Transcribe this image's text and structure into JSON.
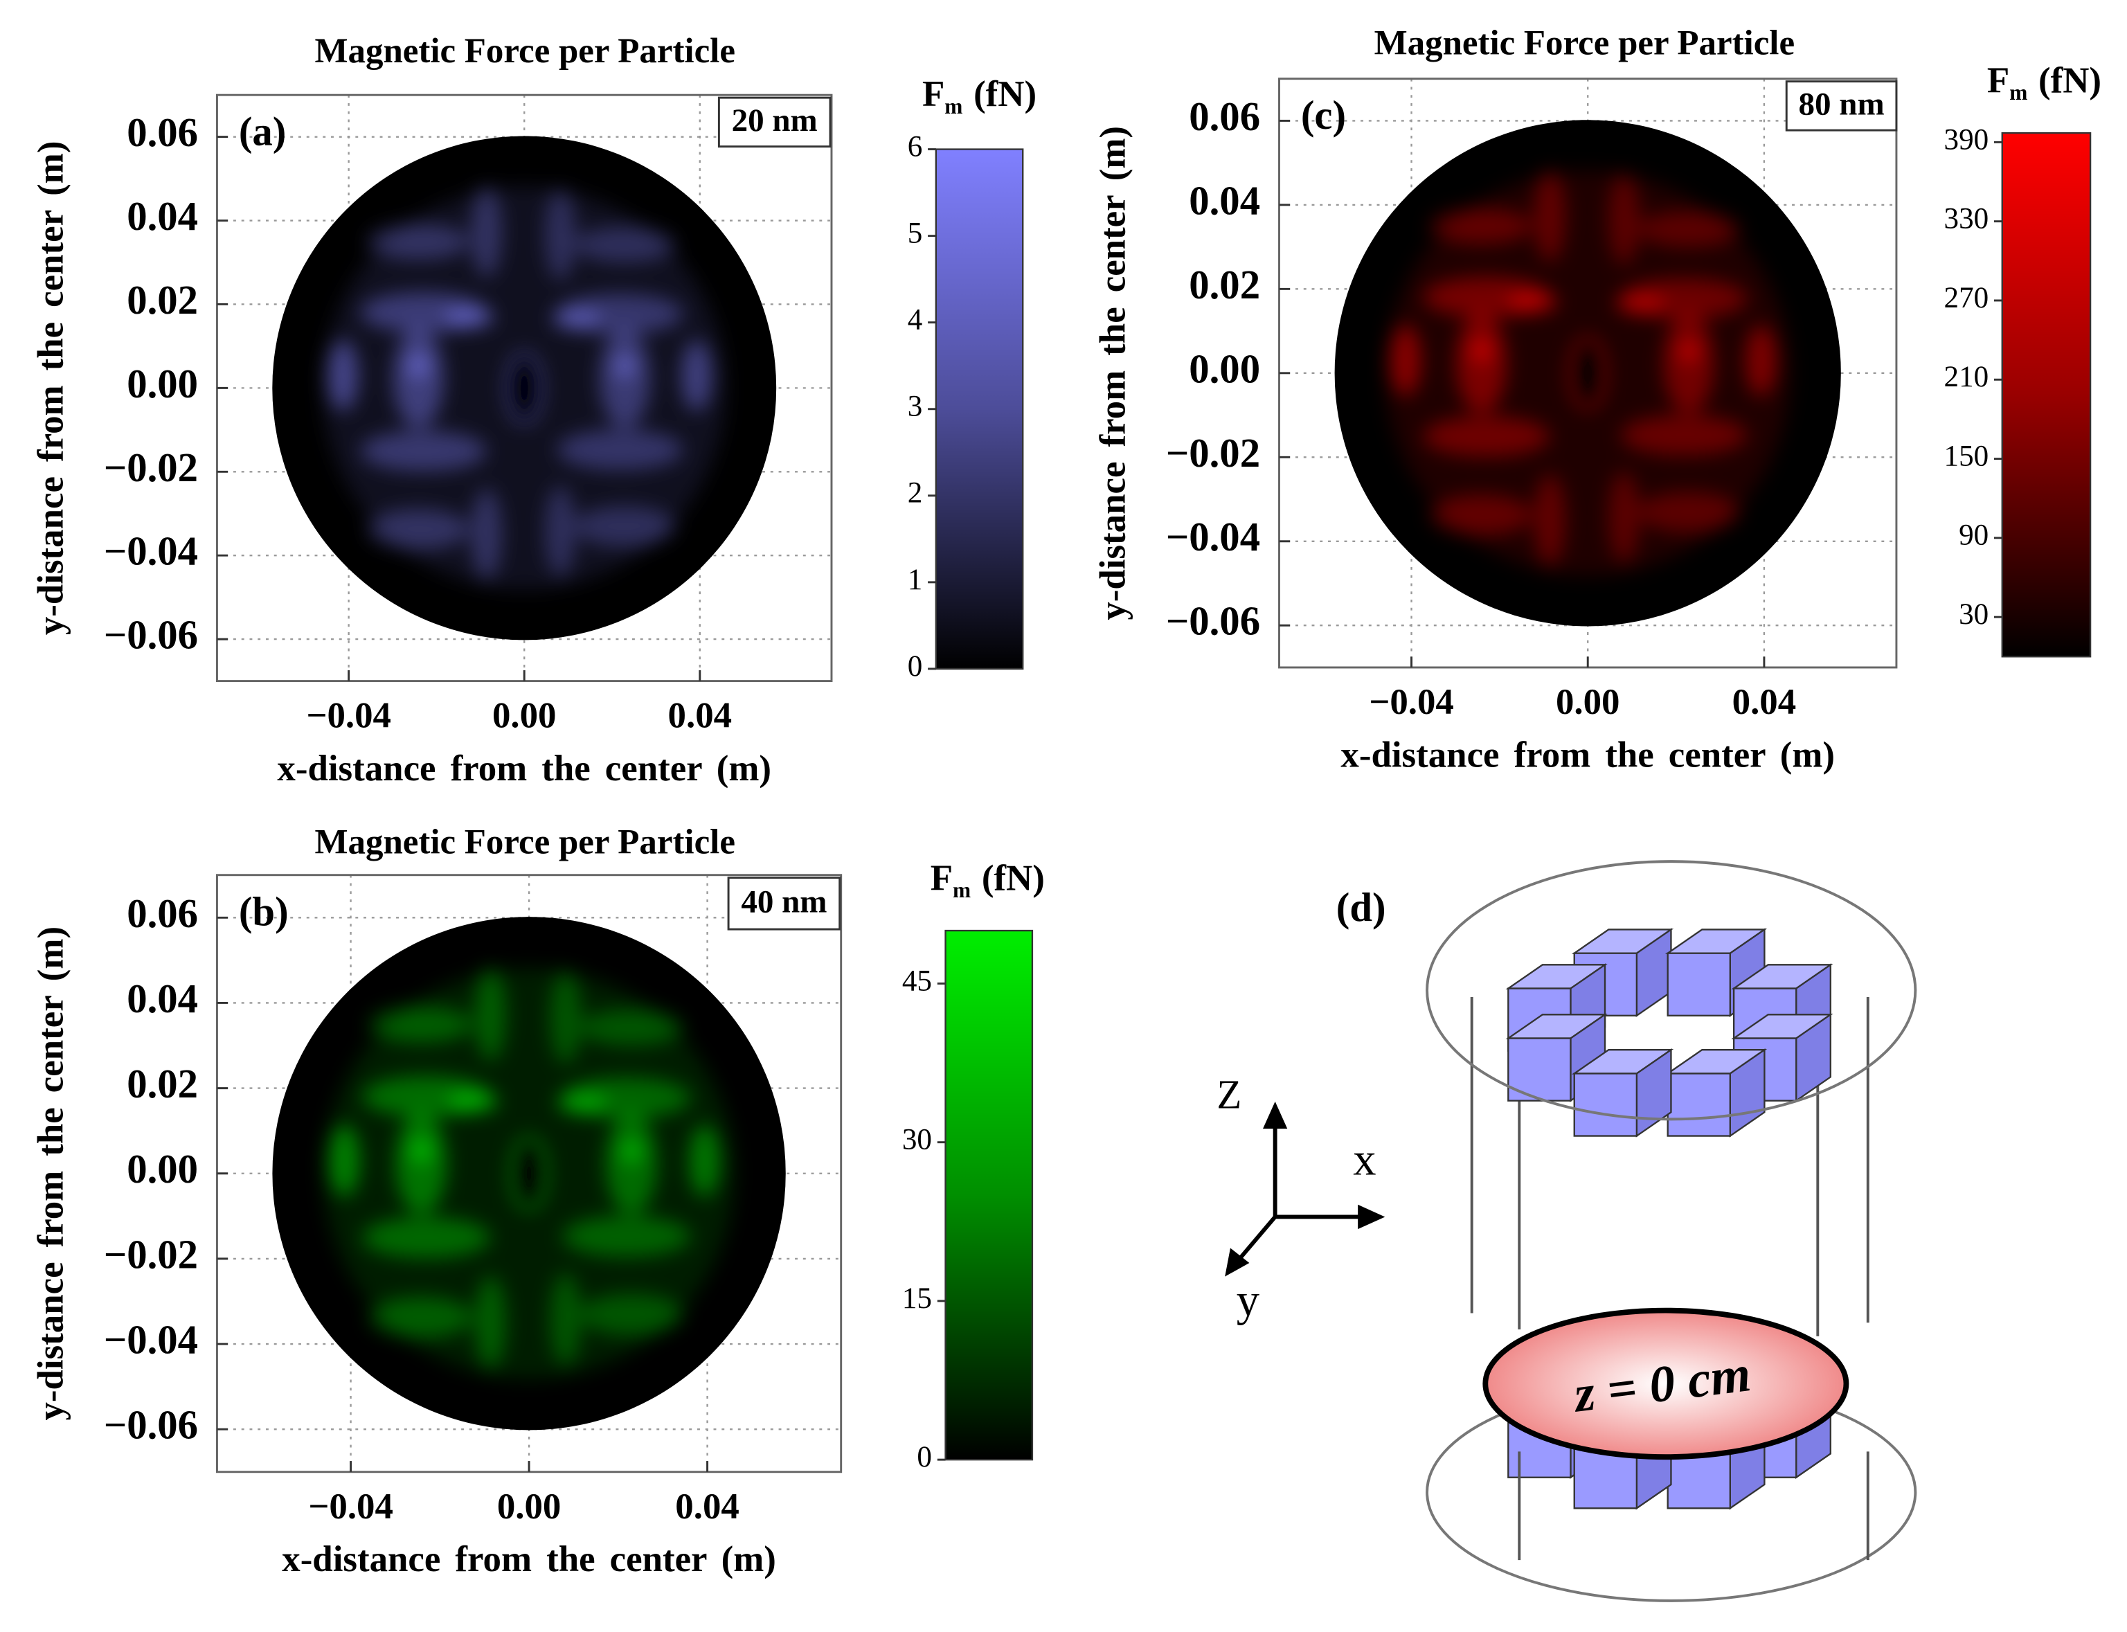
{
  "chart_data": [
    {
      "type": "heatmap",
      "title": "Magnetic Force per Particle",
      "panel_label": "(a)",
      "annotation": "20 nm",
      "x_label": "x-distance from the center (m)",
      "y_label": "y-distance from the center (m)",
      "xlim": [
        -0.07,
        0.07
      ],
      "ylim": [
        -0.07,
        0.07
      ],
      "xticks": [
        {
          "value": -0.04,
          "label": "−0.04"
        },
        {
          "value": 0,
          "label": "0.00"
        },
        0.04
      ],
      "yticks": [
        {
          "value": -0.06,
          "label": "−0.06"
        },
        {
          "value": -0.04,
          "label": "−0.04"
        },
        {
          "value": -0.02,
          "label": "−0.02"
        },
        {
          "value": 0,
          "label": "0.00"
        },
        0.02,
        0.04,
        0.06
      ],
      "grid": true,
      "color": "#8080ff",
      "colorbar": {
        "symbol": "F",
        "subscript": "m",
        "unit": "(fN)",
        "lim": [
          0,
          6
        ],
        "ticks": [
          0,
          1,
          2,
          3,
          4,
          5,
          6
        ]
      }
    },
    {
      "type": "heatmap",
      "title": "Magnetic Force per Particle",
      "panel_label": "(b)",
      "annotation": "40 nm",
      "x_label": "x-distance from the center (m)",
      "y_label": "y-distance from the center (m)",
      "xlim": [
        -0.07,
        0.07
      ],
      "ylim": [
        -0.07,
        0.07
      ],
      "xticks": [
        {
          "value": -0.04,
          "label": "−0.04"
        },
        {
          "value": 0,
          "label": "0.00"
        },
        0.04
      ],
      "yticks": [
        {
          "value": -0.06,
          "label": "−0.06"
        },
        {
          "value": -0.04,
          "label": "−0.04"
        },
        {
          "value": -0.02,
          "label": "−0.02"
        },
        {
          "value": 0,
          "label": "0.00"
        },
        0.02,
        0.04,
        0.06
      ],
      "grid": true,
      "color": "#00ee00",
      "colorbar": {
        "symbol": "F",
        "subscript": "m",
        "unit": "(fN)",
        "lim": [
          0,
          50
        ],
        "ticks": [
          0,
          15,
          30,
          45
        ]
      }
    },
    {
      "type": "heatmap",
      "title": "Magnetic Force per Particle",
      "panel_label": "(c)",
      "annotation": "80 nm",
      "x_label": "x-distance from the center (m)",
      "y_label": "y-distance from the center (m)",
      "xlim": [
        -0.07,
        0.07
      ],
      "ylim": [
        -0.07,
        0.07
      ],
      "xticks": [
        {
          "value": -0.04,
          "label": "−0.04"
        },
        {
          "value": 0,
          "label": "0.00"
        },
        0.04
      ],
      "yticks": [
        {
          "value": -0.06,
          "label": "−0.06"
        },
        {
          "value": -0.04,
          "label": "−0.04"
        },
        {
          "value": -0.02,
          "label": "−0.02"
        },
        {
          "value": 0,
          "label": "0.00"
        },
        0.02,
        0.04,
        0.06
      ],
      "grid": true,
      "color": "#ff0000",
      "colorbar": {
        "symbol": "F",
        "subscript": "m",
        "unit": "(fN)",
        "lim": [
          0,
          397
        ],
        "ticks": [
          30,
          90,
          150,
          210,
          270,
          330,
          390
        ]
      }
    }
  ],
  "diagram": {
    "label": "(d)",
    "axes": {
      "z": "Z",
      "x": "x",
      "y": "y"
    },
    "plane_label": "z = 0 cm"
  }
}
